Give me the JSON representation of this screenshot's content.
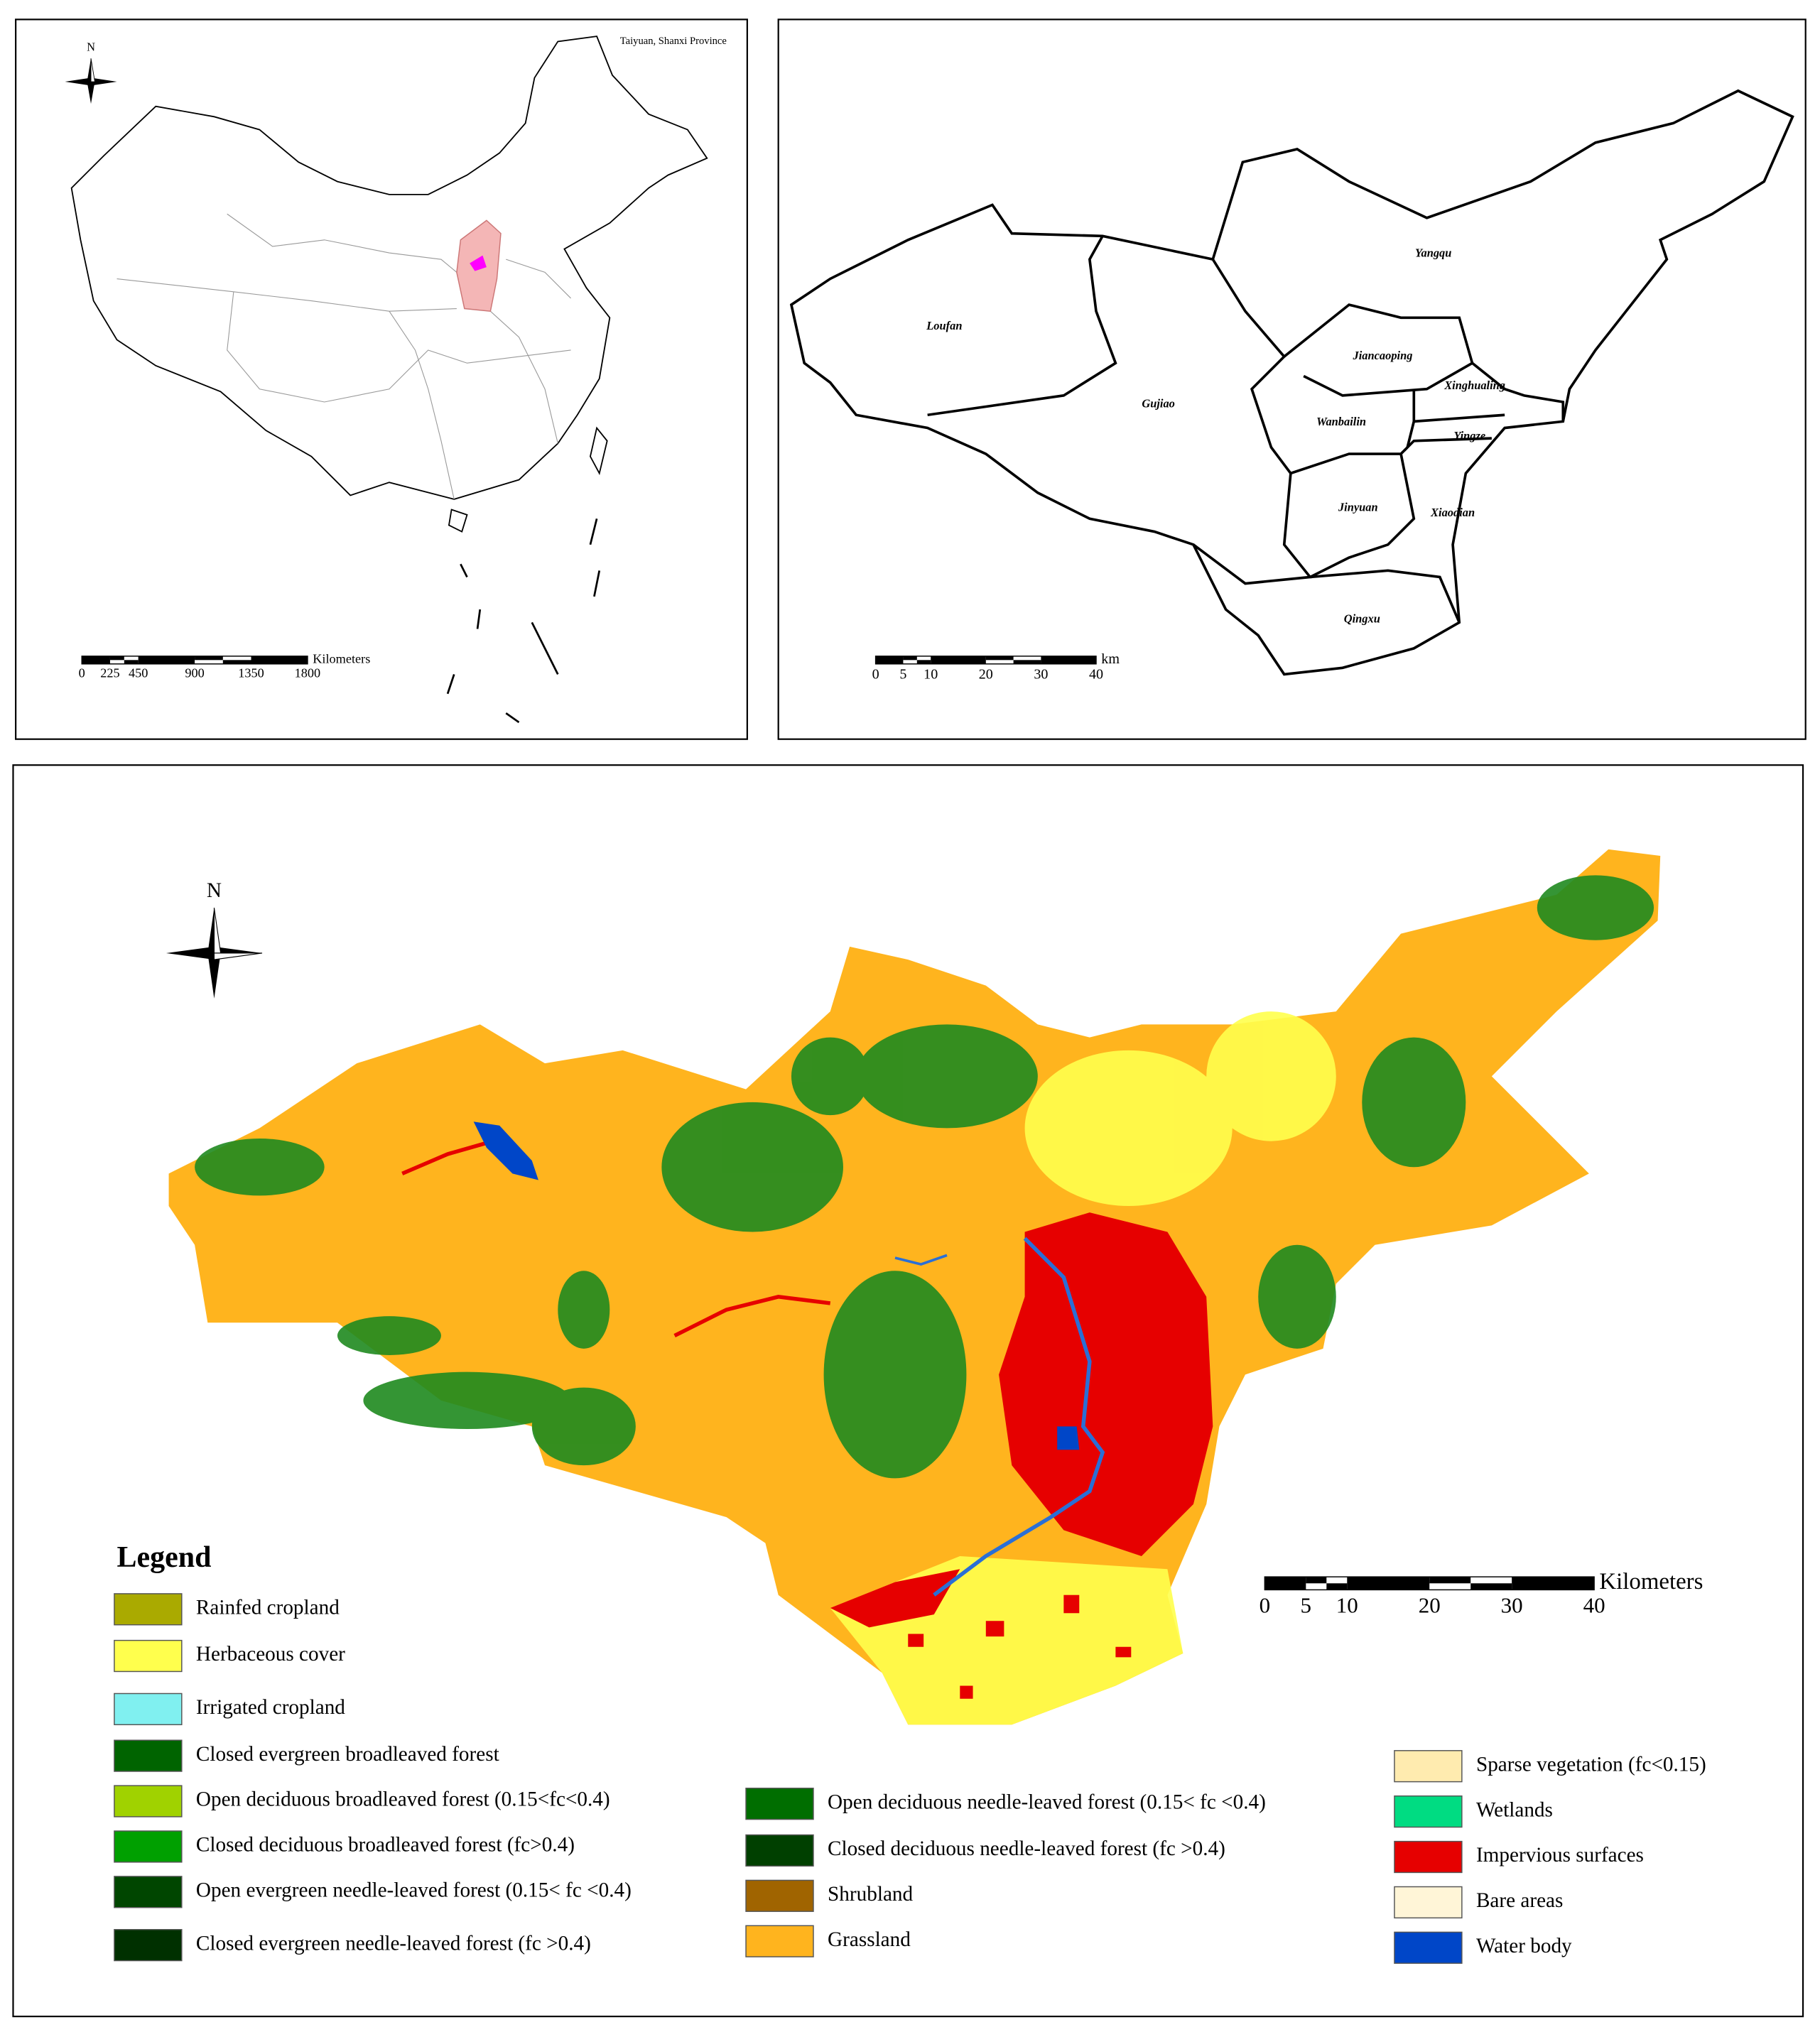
{
  "inset_map": {
    "title": "Taiyuan, Shanxi Province",
    "north": "N",
    "scale_unit": "Kilometers",
    "scale_labels": [
      "0",
      "225",
      "450",
      "900",
      "1350",
      "1800"
    ]
  },
  "district_map": {
    "districts": [
      "Loufan",
      "Gujiao",
      "Yangqu",
      "Jiancaoping",
      "Xinghualing",
      "Wanbailin",
      "Yingze",
      "Jinyuan",
      "Xiaodian",
      "Qingxu"
    ],
    "scale_unit": "km",
    "scale_labels": [
      "0",
      "5",
      "10",
      "20",
      "30",
      "40"
    ]
  },
  "land_cover_map": {
    "north": "N",
    "legend_title": "Legend",
    "scale_unit": "Kilometers",
    "scale_labels": [
      "0",
      "5",
      "10",
      "20",
      "30",
      "40"
    ],
    "legend": [
      {
        "label": "Rainfed cropland",
        "color": "#aaaa00"
      },
      {
        "label": "Herbaceous cover",
        "color": "#ffff4d"
      },
      {
        "label": "Irrigated cropland",
        "color": "#80f0f0"
      },
      {
        "label": "Closed evergreen broadleaved forest",
        "color": "#006400"
      },
      {
        "label": "Open deciduous broadleaved forest (0.15<fc<0.4)",
        "color": "#a0d200"
      },
      {
        "label": "Closed deciduous broadleaved forest (fc>0.4)",
        "color": "#00a000"
      },
      {
        "label": "Open evergreen needle-leaved forest (0.15< fc <0.4)",
        "color": "#004600"
      },
      {
        "label": "Closed evergreen needle-leaved forest (fc >0.4)",
        "color": "#003000"
      },
      {
        "label": "Open deciduous needle-leaved forest (0.15< fc <0.4)",
        "color": "#006e00"
      },
      {
        "label": "Closed deciduous needle-leaved forest (fc >0.4)",
        "color": "#004000"
      },
      {
        "label": "Shrubland",
        "color": "#a06400"
      },
      {
        "label": "Grassland",
        "color": "#ffb41e"
      },
      {
        "label": "Sparse vegetation (fc<0.15)",
        "color": "#ffebaf"
      },
      {
        "label": "Wetlands",
        "color": "#00dc82"
      },
      {
        "label": "Impervious surfaces",
        "color": "#e60000"
      },
      {
        "label": "Bare areas",
        "color": "#fff5d7"
      },
      {
        "label": "Water body",
        "color": "#0046c8"
      }
    ]
  }
}
